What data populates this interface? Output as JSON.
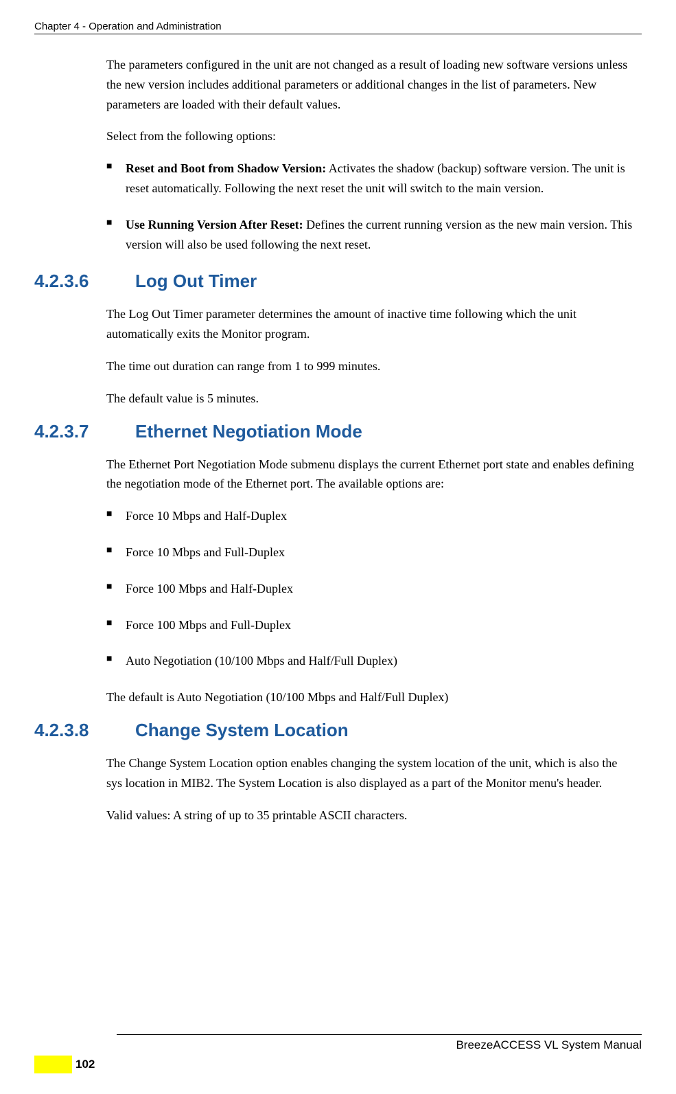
{
  "header": {
    "chapter": "Chapter 4 - Operation and Administration"
  },
  "intro_paragraph": "The parameters configured in the unit are not changed as a result of loading new software versions unless the new version includes additional parameters or additional changes in the list of parameters. New parameters are loaded with their default values.",
  "select_intro": "Select from the following options:",
  "version_options": [
    {
      "bold": "Reset and Boot from Shadow Version:",
      "text": " Activates the shadow (backup) software version. The unit is reset automatically. Following the next reset the unit will switch to the main version."
    },
    {
      "bold": "Use Running Version After Reset:",
      "text": " Defines the current running version as the new main version. This version will also be used following the next reset."
    }
  ],
  "sections": {
    "logout": {
      "number": "4.2.3.6",
      "title": "Log Out Timer",
      "paragraphs": [
        "The Log Out Timer parameter determines the amount of inactive time following which the unit automatically exits the Monitor program.",
        "The time out duration can range from 1 to 999 minutes.",
        "The default value is 5 minutes."
      ]
    },
    "ethernet": {
      "number": "4.2.3.7",
      "title": "Ethernet Negotiation Mode",
      "intro": "The Ethernet Port Negotiation Mode submenu displays the current Ethernet port state and enables defining the negotiation mode of the Ethernet port. The available options are:",
      "options": [
        "Force 10 Mbps and Half-Duplex",
        "Force 10 Mbps and Full-Duplex",
        "Force 100 Mbps and Half-Duplex",
        "Force 100 Mbps and Full-Duplex",
        "Auto Negotiation (10/100 Mbps and Half/Full Duplex)"
      ],
      "default_text": "The default is Auto Negotiation (10/100 Mbps and Half/Full Duplex)"
    },
    "location": {
      "number": "4.2.3.8",
      "title": "Change System Location",
      "paragraphs": [
        "The Change System Location option enables changing the system location of the unit, which is also the sys location in MIB2. The System Location is also displayed as a part of the Monitor menu's header.",
        "Valid values: A string of up to 35 printable ASCII characters."
      ]
    }
  },
  "footer": {
    "manual_name": "BreezeACCESS VL System Manual",
    "page_number": "102"
  },
  "colors": {
    "heading_blue": "#1e5a9c",
    "yellow": "#ffff00",
    "text": "#000000",
    "background": "#ffffff"
  }
}
